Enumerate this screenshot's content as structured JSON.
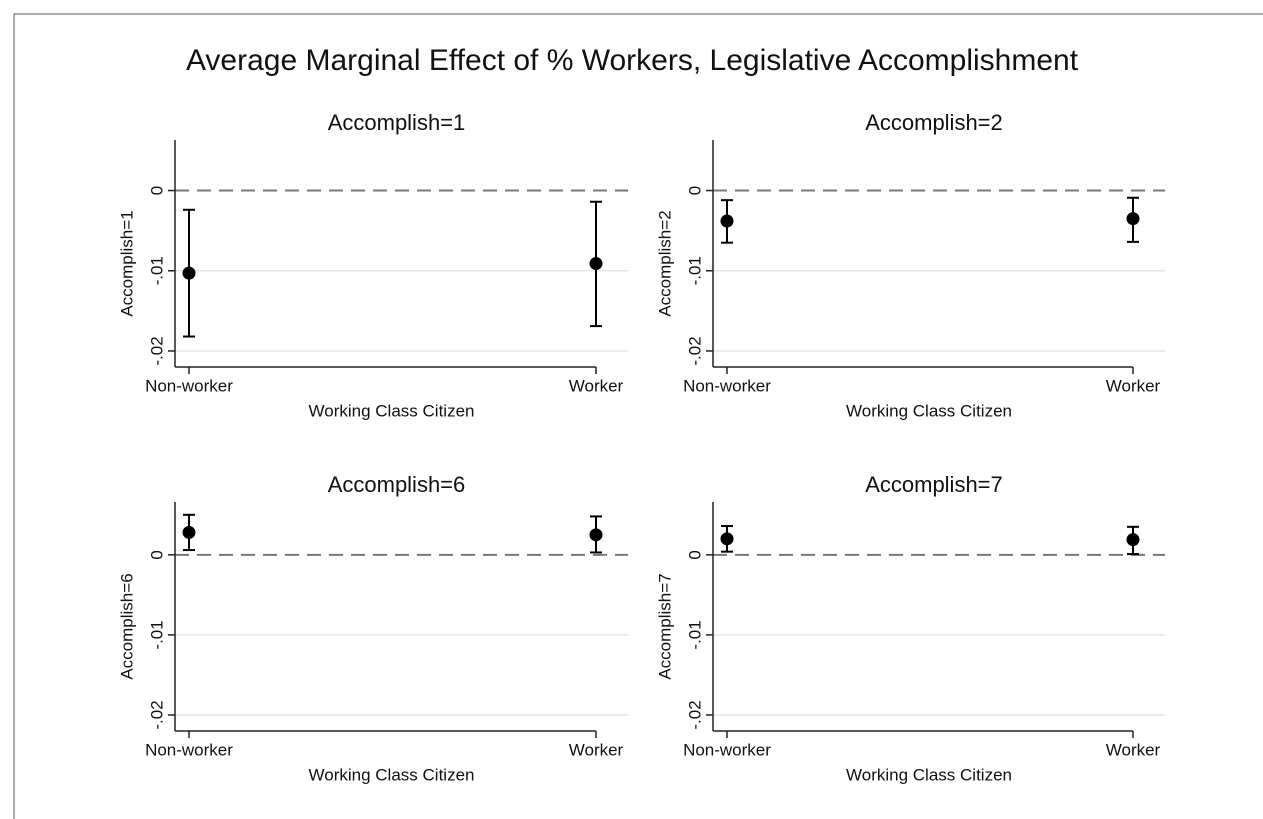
{
  "title": "Average Marginal Effect of % Workers, Legislative Accomplishment",
  "chart_data": [
    {
      "type": "errorbar",
      "title": "Accomplish=1",
      "ylabel": "Accomplish=1",
      "xlabel": "Working Class Citizen",
      "categories": [
        "Non-worker",
        "Worker"
      ],
      "values": [
        -0.0103,
        -0.0091
      ],
      "ci_low": [
        -0.0182,
        -0.0169
      ],
      "ci_high": [
        -0.0024,
        -0.0014
      ],
      "ylim": [
        -0.022,
        0.0063
      ],
      "yticks": [
        0,
        {
          "value": -0.01,
          "label": "-.01"
        },
        {
          "value": -0.02,
          "label": "-.02"
        }
      ],
      "hline": 0,
      "grid": true,
      "color": "#000000"
    },
    {
      "type": "errorbar",
      "title": "Accomplish=2",
      "ylabel": "Accomplish=2",
      "xlabel": "Working Class Citizen",
      "categories": [
        "Non-worker",
        "Worker"
      ],
      "values": [
        -0.0038,
        -0.0035
      ],
      "ci_low": [
        -0.0065,
        -0.0064
      ],
      "ci_high": [
        -0.0012,
        -0.0009
      ],
      "ylim": [
        -0.022,
        0.0063
      ],
      "yticks": [
        0,
        {
          "value": -0.01,
          "label": "-.01"
        },
        {
          "value": -0.02,
          "label": "-.02"
        }
      ],
      "hline": 0,
      "grid": true,
      "color": "#000000"
    },
    {
      "type": "errorbar",
      "title": "Accomplish=6",
      "ylabel": "Accomplish=6",
      "xlabel": "Working Class Citizen",
      "categories": [
        "Non-worker",
        "Worker"
      ],
      "values": [
        0.0028,
        0.0025
      ],
      "ci_low": [
        0.0006,
        0.0003
      ],
      "ci_high": [
        0.005,
        0.0048
      ],
      "ylim": [
        -0.022,
        0.0066
      ],
      "yticks": [
        0,
        {
          "value": -0.01,
          "label": "-.01"
        },
        {
          "value": -0.02,
          "label": "-.02"
        }
      ],
      "hline": 0,
      "grid": true,
      "color": "#000000"
    },
    {
      "type": "errorbar",
      "title": "Accomplish=7",
      "ylabel": "Accomplish=7",
      "xlabel": "Working Class Citizen",
      "categories": [
        "Non-worker",
        "Worker"
      ],
      "values": [
        0.002,
        0.0019
      ],
      "ci_low": [
        0.0004,
        0.0001
      ],
      "ci_high": [
        0.0036,
        0.0035
      ],
      "ylim": [
        -0.022,
        0.0066
      ],
      "yticks": [
        0,
        {
          "value": -0.01,
          "label": "-.01"
        },
        {
          "value": -0.02,
          "label": "-.02"
        }
      ],
      "hline": 0,
      "grid": true,
      "color": "#000000"
    }
  ]
}
